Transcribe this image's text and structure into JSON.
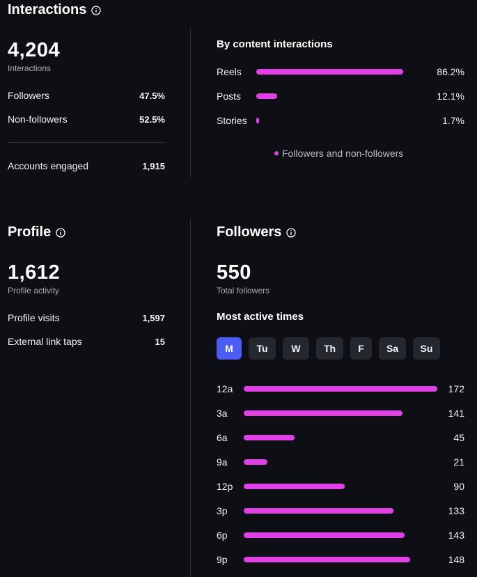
{
  "interactions": {
    "title": "Interactions",
    "total": "4,204",
    "total_label": "Interactions",
    "rows": [
      {
        "label": "Followers",
        "value": "47.5%"
      },
      {
        "label": "Non-followers",
        "value": "52.5%"
      }
    ],
    "accounts_engaged_label": "Accounts engaged",
    "accounts_engaged_value": "1,915"
  },
  "content_interactions": {
    "title": "By content interactions",
    "items": [
      {
        "label": "Reels",
        "value": "86.2%",
        "fraction": 0.862
      },
      {
        "label": "Posts",
        "value": "12.1%",
        "fraction": 0.121
      },
      {
        "label": "Stories",
        "value": "1.7%",
        "fraction": 0.017
      }
    ],
    "legend": "Followers and non-followers"
  },
  "profile": {
    "title": "Profile",
    "total": "1,612",
    "total_label": "Profile activity",
    "rows": [
      {
        "label": "Profile visits",
        "value": "1,597"
      },
      {
        "label": "External link taps",
        "value": "15"
      }
    ]
  },
  "followers": {
    "title": "Followers",
    "total": "550",
    "total_label": "Total followers",
    "most_active_title": "Most active times",
    "days": [
      {
        "label": "M",
        "active": true
      },
      {
        "label": "Tu",
        "active": false
      },
      {
        "label": "W",
        "active": false
      },
      {
        "label": "Th",
        "active": false
      },
      {
        "label": "F",
        "active": false
      },
      {
        "label": "Sa",
        "active": false
      },
      {
        "label": "Su",
        "active": false
      }
    ],
    "hours": [
      {
        "label": "12a",
        "value": "172",
        "count": 172
      },
      {
        "label": "3a",
        "value": "141",
        "count": 141
      },
      {
        "label": "6a",
        "value": "45",
        "count": 45
      },
      {
        "label": "9a",
        "value": "21",
        "count": 21
      },
      {
        "label": "12p",
        "value": "90",
        "count": 90
      },
      {
        "label": "3p",
        "value": "133",
        "count": 133
      },
      {
        "label": "6p",
        "value": "143",
        "count": 143
      },
      {
        "label": "9p",
        "value": "148",
        "count": 148
      }
    ]
  },
  "colors": {
    "background": "#0d0f14",
    "bar": "#e040e6",
    "active_tab": "#4b5df5",
    "tab": "#24272e"
  },
  "icons": {
    "info": "info-icon"
  }
}
